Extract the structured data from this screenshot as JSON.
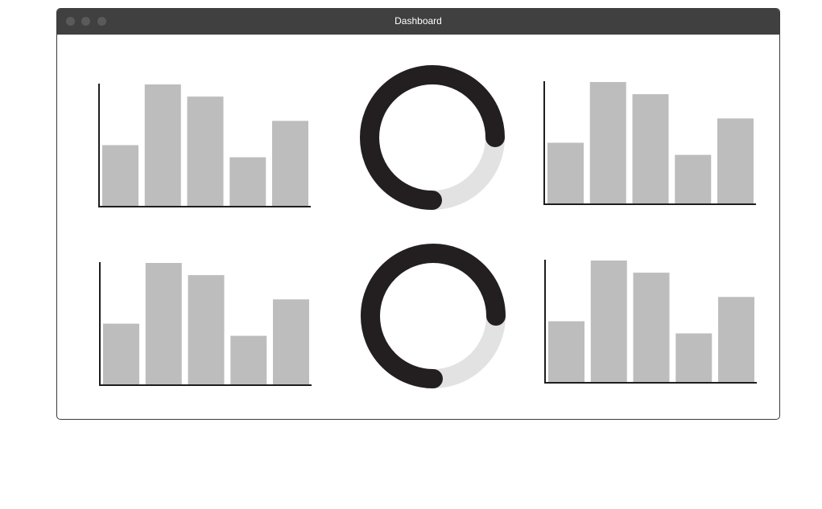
{
  "window": {
    "title": "Dashboard"
  },
  "colors": {
    "bar": "#bdbdbd",
    "axis": "#1e1e1e",
    "ring": "#231f20",
    "ring_track": "#e2e2e2",
    "titlebar": "#404040"
  },
  "chart_data": [
    {
      "type": "bar",
      "values": [
        50,
        100,
        90,
        40,
        70
      ],
      "ylim": [
        0,
        100
      ]
    },
    {
      "type": "pie",
      "values": [
        75,
        25
      ]
    },
    {
      "type": "bar",
      "values": [
        50,
        100,
        90,
        40,
        70
      ],
      "ylim": [
        0,
        100
      ]
    },
    {
      "type": "bar",
      "values": [
        50,
        100,
        90,
        40,
        70
      ],
      "ylim": [
        0,
        100
      ]
    },
    {
      "type": "pie",
      "values": [
        75,
        25
      ]
    },
    {
      "type": "bar",
      "values": [
        50,
        100,
        90,
        40,
        70
      ],
      "ylim": [
        0,
        100
      ]
    }
  ]
}
